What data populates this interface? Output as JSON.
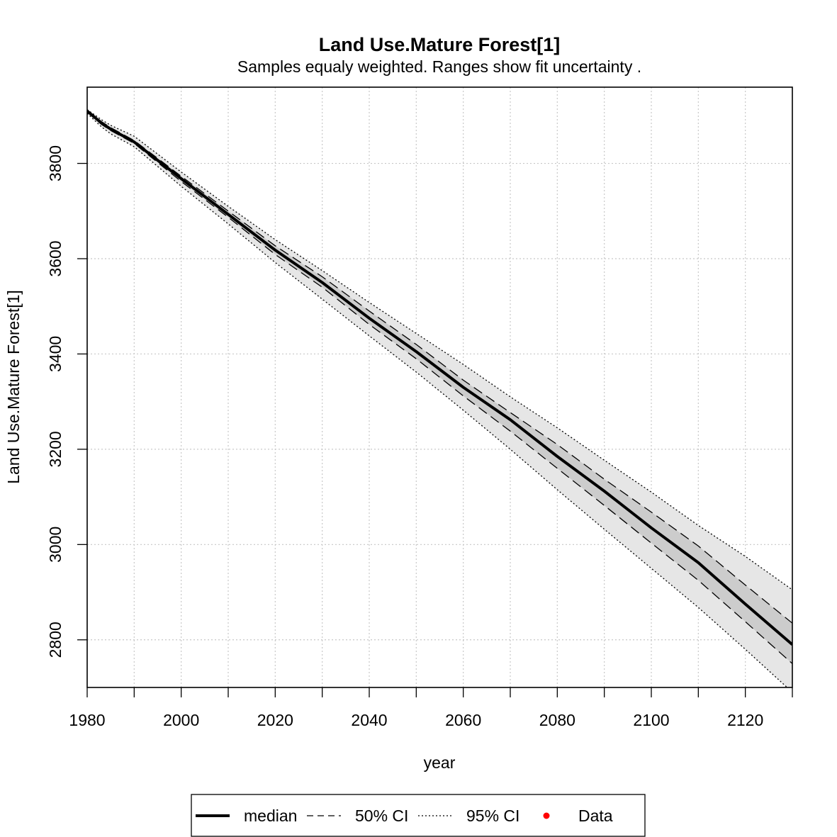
{
  "chart_data": {
    "type": "line",
    "title": "Land Use.Mature Forest[1]",
    "subtitle": "Samples equaly weighted. Ranges show  fit uncertainty .",
    "xlabel": "year",
    "ylabel": "Land Use.Mature Forest[1]",
    "xlim": [
      1980,
      2130
    ],
    "ylim": [
      2700,
      3960
    ],
    "x_ticks": [
      1980,
      2000,
      2020,
      2040,
      2060,
      2080,
      2100,
      2120
    ],
    "x_minor_ticks": [
      1990,
      2010,
      2030,
      2050,
      2070,
      2090,
      2110,
      2130
    ],
    "y_ticks": [
      2800,
      3000,
      3200,
      3400,
      3600,
      3800
    ],
    "grid": true,
    "legend_position": "bottom",
    "legend": [
      {
        "label": "median",
        "style": "solid"
      },
      {
        "label": "50% CI",
        "style": "dashed"
      },
      {
        "label": "95% CI",
        "style": "dotted"
      },
      {
        "label": "Data",
        "style": "point",
        "color": "#ff0000"
      }
    ],
    "colors": {
      "band95": "#e6e6e6",
      "band50": "#cccccc",
      "line": "#000000",
      "grid": "#c8c8c8",
      "data_point": "#ff0000"
    },
    "x": [
      1980,
      1983,
      1985,
      1990,
      2000,
      2010,
      2020,
      2030,
      2040,
      2050,
      2060,
      2070,
      2080,
      2090,
      2100,
      2110,
      2120,
      2130
    ],
    "series": [
      {
        "name": "median",
        "values": [
          3910,
          3885,
          3872,
          3845,
          3768,
          3693,
          3618,
          3550,
          3475,
          3405,
          3330,
          3262,
          3185,
          3112,
          3035,
          2962,
          2875,
          2790
        ]
      },
      {
        "name": "50% CI",
        "lower": [
          3908,
          3882,
          3869,
          3842,
          3762,
          3687,
          3609,
          3540,
          3462,
          3390,
          3312,
          3238,
          3160,
          3082,
          3003,
          2925,
          2838,
          2750
        ],
        "upper": [
          3912,
          3888,
          3875,
          3848,
          3773,
          3700,
          3627,
          3562,
          3490,
          3420,
          3345,
          3277,
          3210,
          3137,
          3068,
          2997,
          2915,
          2835
        ]
      },
      {
        "name": "95% CI",
        "lower": [
          3905,
          3877,
          3862,
          3835,
          3752,
          3673,
          3592,
          3515,
          3438,
          3362,
          3282,
          3200,
          3115,
          3032,
          2950,
          2868,
          2780,
          2690
        ],
        "upper": [
          3913,
          3892,
          3880,
          3857,
          3782,
          3710,
          3640,
          3575,
          3508,
          3443,
          3378,
          3310,
          3245,
          3177,
          3110,
          3040,
          2975,
          2905
        ]
      }
    ]
  }
}
